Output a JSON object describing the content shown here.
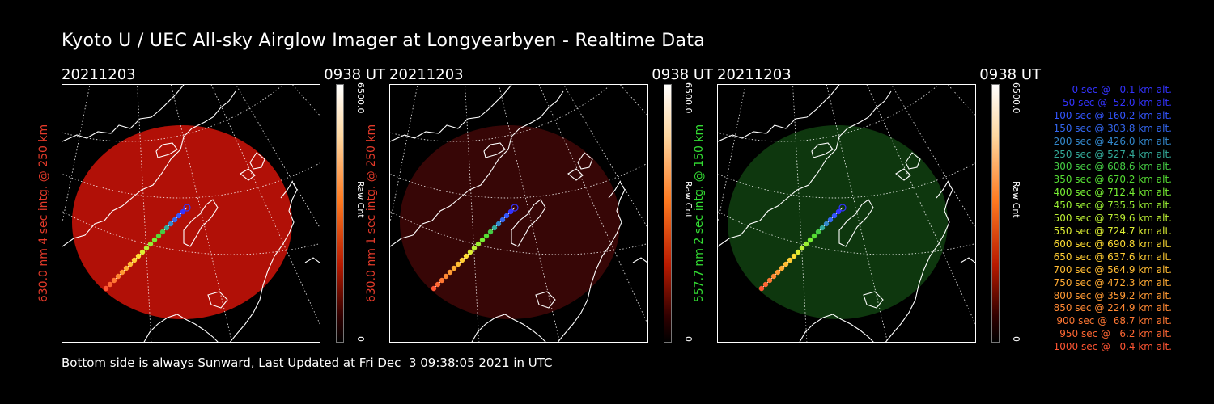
{
  "title": "Kyoto U / UEC All-sky Airglow Imager at Longyearbyen - Realtime Data",
  "footer": "Bottom side is always Sunward, Last Updated at Fri Dec  3 09:38:05 2021 in UTC",
  "panels": [
    {
      "date": "20211203",
      "time": "0938 UT",
      "ylabel": "630.0 nm 4 sec intg. @ 250 km",
      "ylabel_color": "#e43a2a",
      "fill": "#c41208",
      "fill_opacity": 0.9,
      "cbar_max": "6500.0",
      "cbar_unit": "Raw Cnt",
      "cbar_min": "0"
    },
    {
      "date": "20211203",
      "time": "0938 UT",
      "ylabel": "630.0 nm 1 sec intg. @ 250 km",
      "ylabel_color": "#e43a2a",
      "fill": "#3a0606",
      "fill_opacity": 0.95,
      "cbar_max": "6500.0",
      "cbar_unit": "Raw Cnt",
      "cbar_min": "0"
    },
    {
      "date": "20211203",
      "time": "0938 UT",
      "ylabel": "557.7 nm 2 sec intg. @ 150 km",
      "ylabel_color": "#33dd33",
      "fill": "#0f3a0f",
      "fill_opacity": 0.95,
      "cbar_max": "6500.0",
      "cbar_unit": "Raw Cnt",
      "cbar_min": "0"
    }
  ],
  "legend": [
    {
      "text": "0 sec @   0.1 km alt.",
      "color": "#3333ff"
    },
    {
      "text": "50 sec @  52.0 km alt.",
      "color": "#3333ff"
    },
    {
      "text": "100 sec @ 160.2 km alt.",
      "color": "#3355ff"
    },
    {
      "text": "150 sec @ 303.8 km alt.",
      "color": "#3366ee"
    },
    {
      "text": "200 sec @ 426.0 km alt.",
      "color": "#3388cc"
    },
    {
      "text": "250 sec @ 527.4 km alt.",
      "color": "#33aa99"
    },
    {
      "text": "300 sec @ 608.6 km alt.",
      "color": "#44cc44"
    },
    {
      "text": "350 sec @ 670.2 km alt.",
      "color": "#55dd33"
    },
    {
      "text": "400 sec @ 712.4 km alt.",
      "color": "#77ee33"
    },
    {
      "text": "450 sec @ 735.5 km alt.",
      "color": "#99ee33"
    },
    {
      "text": "500 sec @ 739.6 km alt.",
      "color": "#bbee33"
    },
    {
      "text": "550 sec @ 724.7 km alt.",
      "color": "#ddee33"
    },
    {
      "text": "600 sec @ 690.8 km alt.",
      "color": "#ffdd33"
    },
    {
      "text": "650 sec @ 637.6 km alt.",
      "color": "#ffcc33"
    },
    {
      "text": "700 sec @ 564.9 km alt.",
      "color": "#ffbb33"
    },
    {
      "text": "750 sec @ 472.3 km alt.",
      "color": "#ffaa33"
    },
    {
      "text": "800 sec @ 359.2 km alt.",
      "color": "#ff9933"
    },
    {
      "text": "850 sec @ 224.9 km alt.",
      "color": "#ff8833"
    },
    {
      "text": "900 sec @  68.7 km alt.",
      "color": "#ff7733"
    },
    {
      "text": "950 sec @   6.2 km alt.",
      "color": "#ff6633"
    },
    {
      "text": "1000 sec @   0.4 km alt.",
      "color": "#ff5533"
    }
  ]
}
